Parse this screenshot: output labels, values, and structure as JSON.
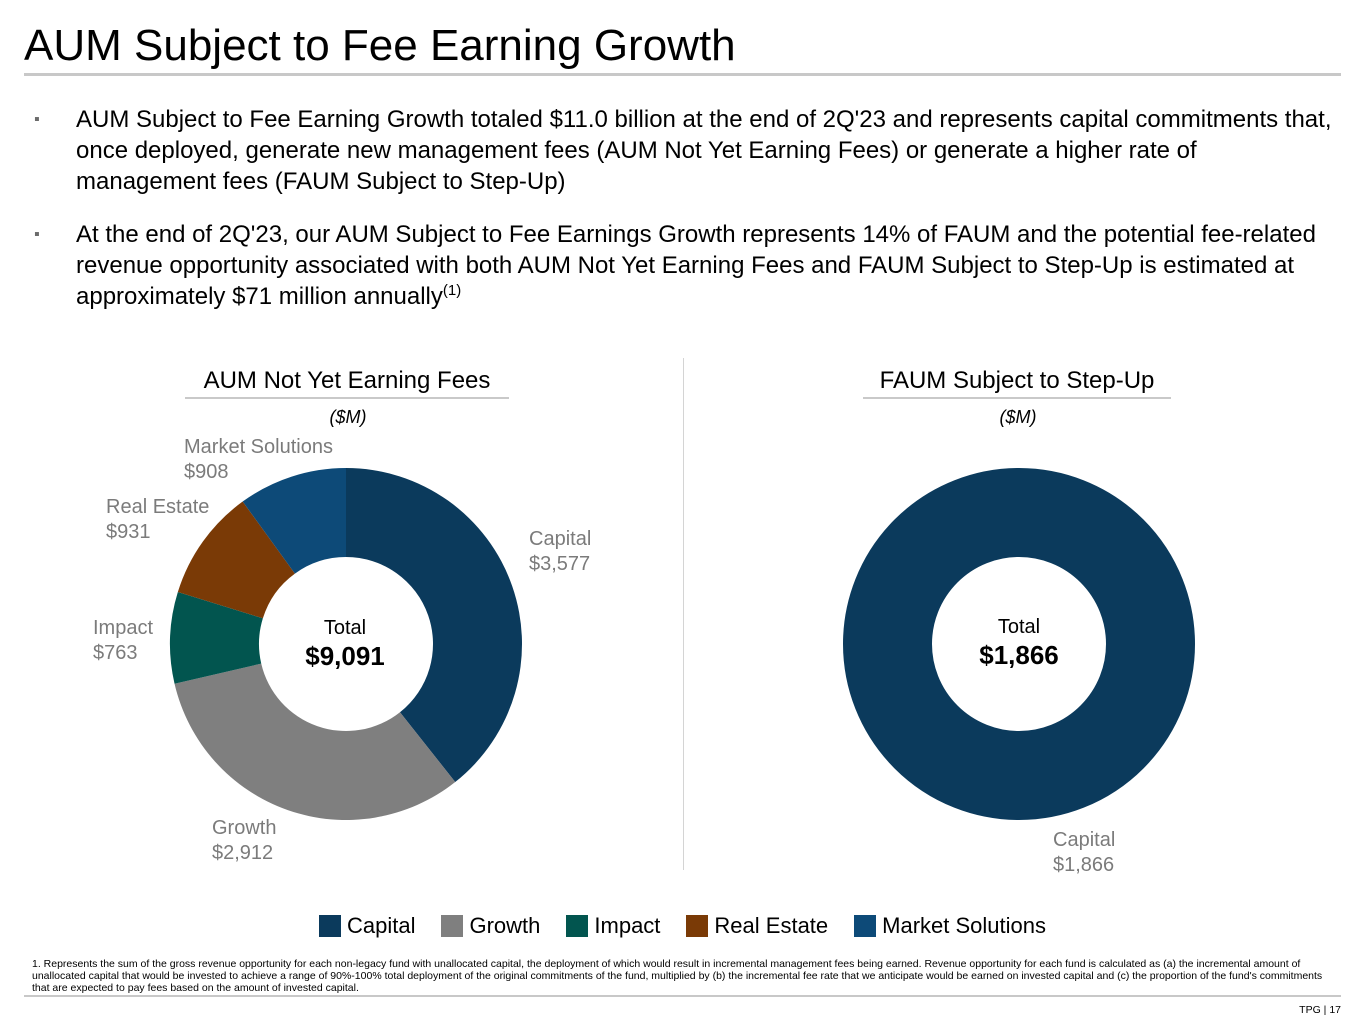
{
  "page": {
    "title": "AUM Subject to Fee Earning Growth",
    "bullets": [
      {
        "text": "AUM Subject to Fee Earning Growth totaled $11.0 billion at the end of 2Q'23 and represents capital commitments that, once deployed, generate new management fees (AUM Not Yet Earning Fees) or generate a higher rate of management fees (FAUM Subject to Step-Up)",
        "sup": ""
      },
      {
        "text": "At the end of 2Q'23, our AUM Subject to Fee Earnings Growth represents 14% of FAUM and the potential fee-related revenue opportunity associated with both AUM Not Yet Earning Fees and FAUM Subject to Step-Up is estimated at approximately $71 million annually",
        "sup": "(1)"
      }
    ],
    "bullet_marker": "▪",
    "footnote": "1. Represents the sum of the gross revenue opportunity for each non-legacy fund with unallocated capital, the deployment of which would result in incremental management fees being earned. Revenue opportunity for each fund is calculated as (a) the incremental amount of unallocated capital that would be invested to achieve a range of 90%-100% total deployment of the original commitments of the fund, multiplied by (b) the incremental fee rate that we anticipate would be earned on invested capital and (c) the proportion of the fund's commitments that are expected to pay fees based on the amount of invested capital.",
    "page_number": "TPG | 17"
  },
  "colors": {
    "Capital": "#0b3a5c",
    "Growth": "#7f7f7f",
    "Impact": "#02554f",
    "Real Estate": "#7a3a06",
    "Market Solutions": "#0d4a78"
  },
  "legend": [
    "Capital",
    "Growth",
    "Impact",
    "Real Estate",
    "Market Solutions"
  ],
  "chart_data": [
    {
      "type": "pie",
      "style": "donut",
      "title": "AUM Not Yet Earning Fees",
      "unit": "($M)",
      "center_label": "Total",
      "center_value": "$9,091",
      "slices": [
        {
          "name": "Capital",
          "value": 3577,
          "label": "$3,577"
        },
        {
          "name": "Growth",
          "value": 2912,
          "label": "$2,912"
        },
        {
          "name": "Impact",
          "value": 763,
          "label": "$763"
        },
        {
          "name": "Real Estate",
          "value": 931,
          "label": "$931"
        },
        {
          "name": "Market Solutions",
          "value": 908,
          "label": "$908"
        }
      ]
    },
    {
      "type": "pie",
      "style": "donut",
      "title": "FAUM Subject to Step-Up",
      "unit": "($M)",
      "center_label": "Total",
      "center_value": "$1,866",
      "slices": [
        {
          "name": "Capital",
          "value": 1866,
          "label": "$1,866"
        }
      ]
    }
  ]
}
